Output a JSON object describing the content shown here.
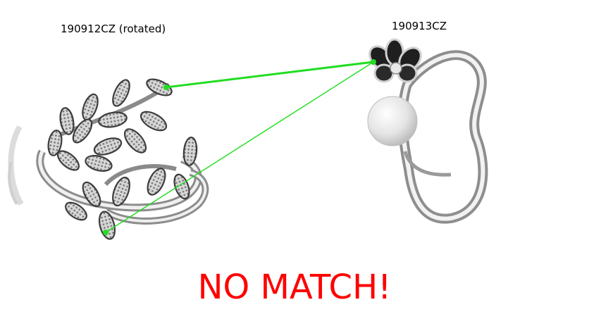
{
  "left_image": {
    "caption": "190912CZ (rotated)",
    "content": "silver leaf-branch ring with pave stones"
  },
  "right_image": {
    "caption": "190913CZ",
    "content": "silver ring with black enamel flower and white pearl"
  },
  "match_lines": {
    "count": 2,
    "color": "#22dd22"
  },
  "verdict": {
    "text": "NO MATCH!",
    "color": "#ff0000"
  }
}
